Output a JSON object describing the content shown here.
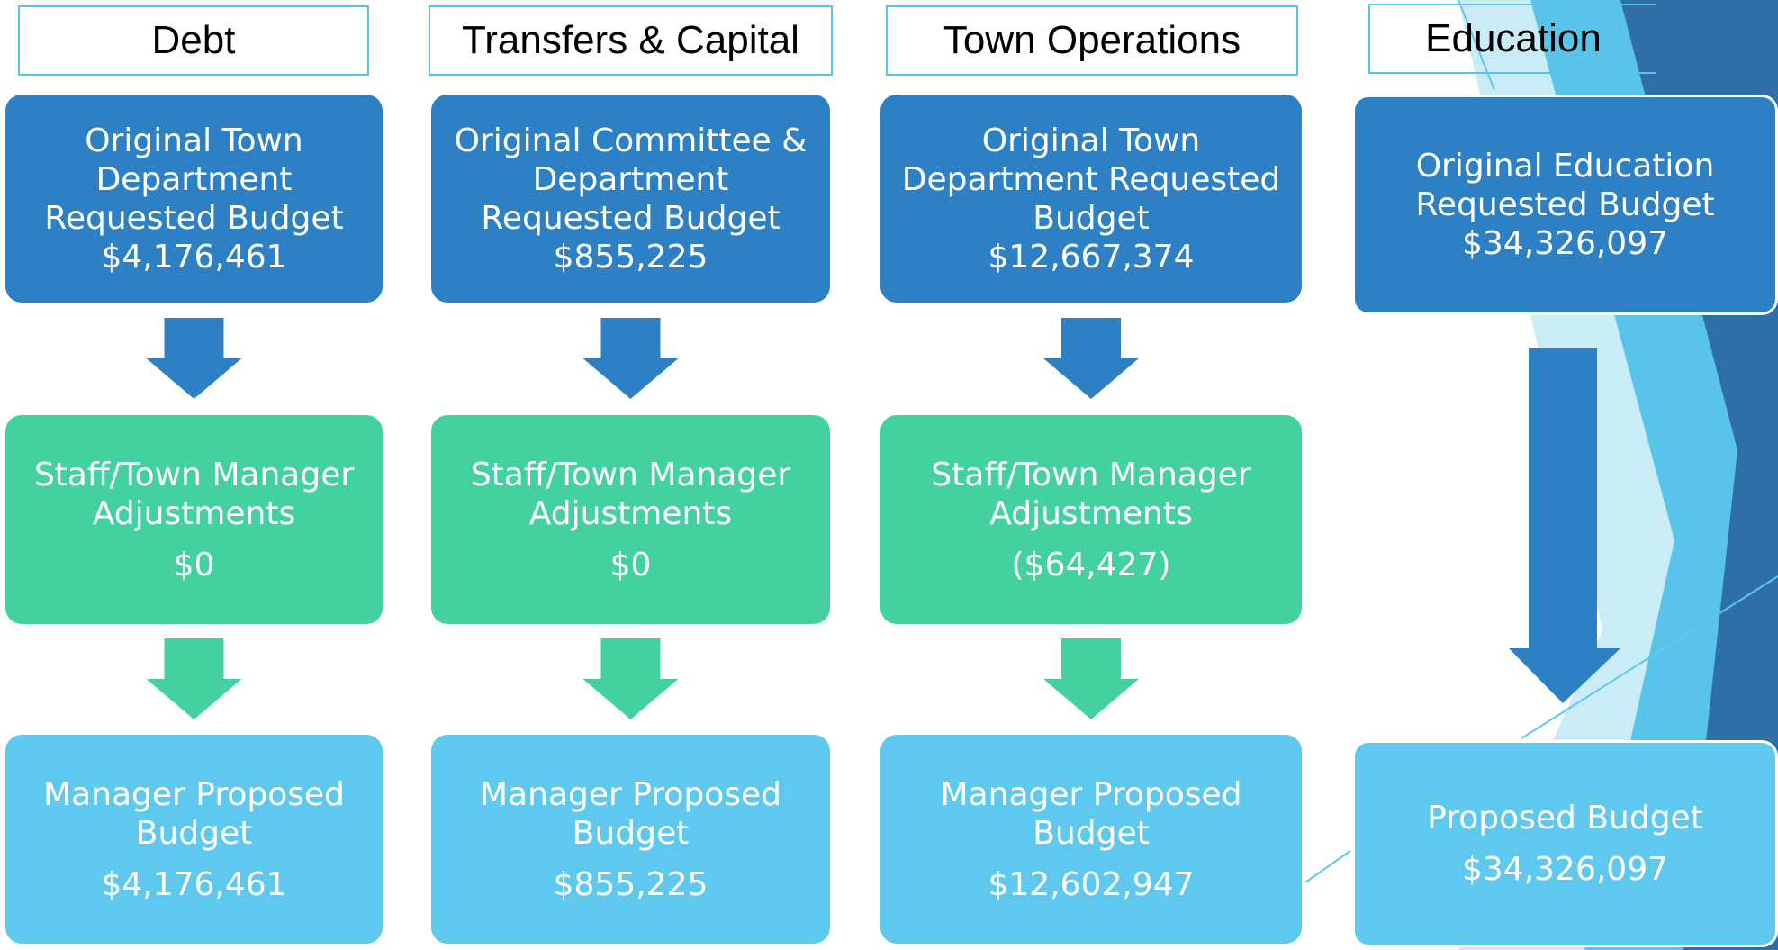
{
  "columns": [
    {
      "header": "Debt",
      "boxes": [
        {
          "lines": [
            "Original Town",
            "Department",
            "Requested Budget",
            "$4,176,461"
          ]
        },
        {
          "lines": [
            "Staff/Town Manager",
            "Adjustments",
            "$0"
          ]
        },
        {
          "lines": [
            "Manager Proposed",
            "Budget",
            "$4,176,461"
          ]
        }
      ]
    },
    {
      "header": "Transfers & Capital",
      "boxes": [
        {
          "lines": [
            "Original Committee &",
            "Department",
            "Requested Budget",
            "$855,225"
          ]
        },
        {
          "lines": [
            "Staff/Town Manager",
            "Adjustments",
            "$0"
          ]
        },
        {
          "lines": [
            "Manager Proposed",
            "Budget",
            "$855,225"
          ]
        }
      ]
    },
    {
      "header": "Town Operations",
      "boxes": [
        {
          "lines": [
            "Original Town",
            "Department Requested",
            "Budget",
            "$12,667,374"
          ]
        },
        {
          "lines": [
            "Staff/Town Manager",
            "Adjustments",
            "($64,427)"
          ]
        },
        {
          "lines": [
            "Manager Proposed",
            "Budget",
            "$12,602,947"
          ]
        }
      ]
    },
    {
      "header": "Education",
      "boxes": [
        {
          "lines": [
            "Original Education",
            "Requested Budget",
            "$34,326,097"
          ]
        },
        {
          "lines": [
            "Proposed Budget",
            "$34,326,097"
          ]
        }
      ]
    }
  ]
}
